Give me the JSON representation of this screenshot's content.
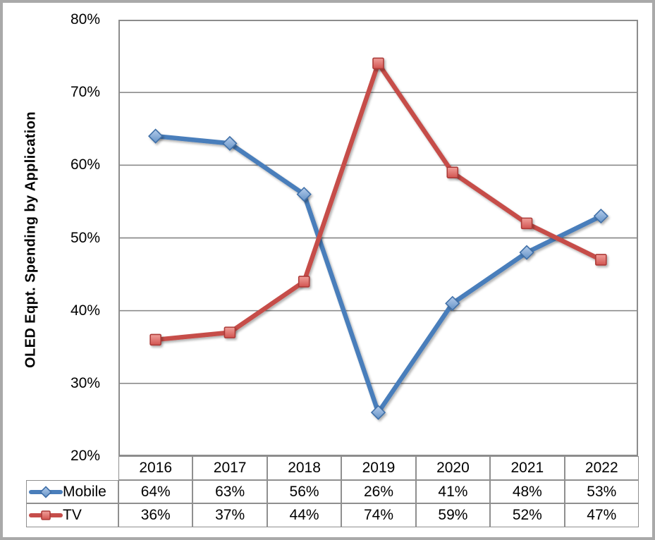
{
  "chart_data": {
    "type": "line",
    "title": "",
    "y_axis_title": "OLED Eqpt. Spending by Application",
    "categories": [
      "2016",
      "2017",
      "2018",
      "2019",
      "2020",
      "2021",
      "2022"
    ],
    "series": [
      {
        "name": "Mobile",
        "values": [
          64,
          63,
          56,
          26,
          41,
          48,
          53
        ],
        "line_color": "#4A7EBB",
        "marker": "diamond",
        "marker_gradient": [
          "#B5CDEC",
          "#6492C6"
        ],
        "marker_stroke": "#3F6FA8"
      },
      {
        "name": "TV",
        "values": [
          36,
          37,
          44,
          74,
          59,
          52,
          47
        ],
        "line_color": "#C64D4A",
        "marker": "square",
        "marker_gradient": [
          "#F0A09B",
          "#D25450"
        ],
        "marker_stroke": "#AC3B38"
      }
    ],
    "value_suffix": "%",
    "y_axis": {
      "min": 20,
      "max": 80,
      "step": 10,
      "tick_labels": [
        "80%",
        "70%",
        "60%",
        "50%",
        "40%",
        "30%",
        "20%"
      ]
    },
    "gridlines": {
      "show": true,
      "color": "#8C8C8C"
    },
    "plot_border_color": "#8C8C8C",
    "legend_position": "data-table-left",
    "xlabel": "",
    "ylabel": "OLED Eqpt. Spending by Application",
    "ylim": [
      20,
      80
    ]
  }
}
